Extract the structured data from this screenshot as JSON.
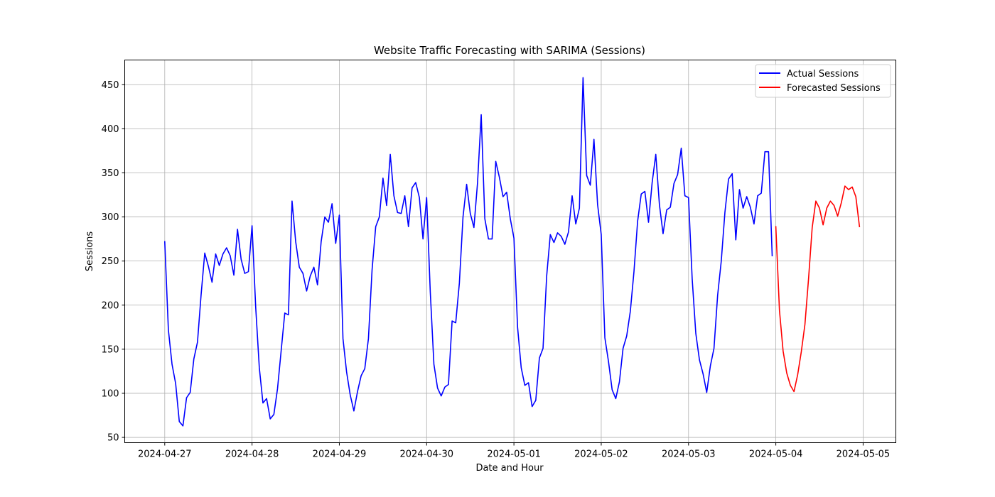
{
  "chart_data": {
    "type": "line",
    "title": "Website Traffic Forecasting with SARIMA (Sessions)",
    "xlabel": "Date and Hour",
    "ylabel": "Sessions",
    "ylim": [
      44,
      478
    ],
    "xlim": [
      "2024-04-26T13:00",
      "2024-05-05T09:00"
    ],
    "grid": true,
    "legend_position": "top-right",
    "x_ticks": [
      "2024-04-27",
      "2024-04-28",
      "2024-04-29",
      "2024-04-30",
      "2024-05-01",
      "2024-05-02",
      "2024-05-03",
      "2024-05-04",
      "2024-05-05"
    ],
    "y_ticks": [
      50,
      100,
      150,
      200,
      250,
      300,
      350,
      400,
      450
    ],
    "series": [
      {
        "name": "Actual Sessions",
        "color": "#0000ff",
        "start": "2024-04-27T00:00",
        "interval_hours": 1,
        "values": [
          272,
          172,
          133,
          111,
          68,
          63,
          95,
          101,
          139,
          158,
          212,
          259,
          244,
          226,
          258,
          245,
          258,
          265,
          256,
          234,
          286,
          252,
          236,
          238,
          290,
          198,
          129,
          89,
          94,
          71,
          76,
          105,
          148,
          191,
          189,
          318,
          272,
          243,
          236,
          216,
          233,
          243,
          223,
          272,
          300,
          294,
          315,
          270,
          302,
          162,
          124,
          98,
          80,
          102,
          120,
          128,
          162,
          240,
          289,
          300,
          344,
          313,
          371,
          324,
          305,
          304,
          324,
          289,
          333,
          339,
          322,
          275,
          322,
          215,
          133,
          106,
          97,
          107,
          110,
          182,
          180,
          225,
          300,
          337,
          304,
          288,
          339,
          416,
          298,
          275,
          275,
          363,
          345,
          323,
          328,
          298,
          276,
          175,
          129,
          109,
          112,
          85,
          92,
          140,
          151,
          233,
          280,
          271,
          282,
          278,
          269,
          283,
          324,
          292,
          310,
          458,
          347,
          336,
          388,
          314,
          280,
          163,
          136,
          104,
          94,
          113,
          151,
          165,
          193,
          238,
          295,
          326,
          329,
          294,
          339,
          371,
          314,
          281,
          308,
          311,
          338,
          348,
          378,
          324,
          322,
          230,
          168,
          138,
          122,
          101,
          131,
          151,
          211,
          250,
          305,
          343,
          349,
          274,
          331,
          310,
          323,
          311,
          292,
          324,
          327,
          374,
          374,
          256
        ]
      },
      {
        "name": "Forecasted Sessions",
        "color": "#ff0000",
        "start": "2024-05-04T00:00",
        "interval_hours": 1,
        "values": [
          289,
          194,
          148,
          123,
          109,
          102,
          121,
          147,
          178,
          230,
          288,
          318,
          310,
          291,
          310,
          318,
          313,
          301,
          316,
          335,
          331,
          334,
          323,
          289
        ]
      }
    ]
  }
}
